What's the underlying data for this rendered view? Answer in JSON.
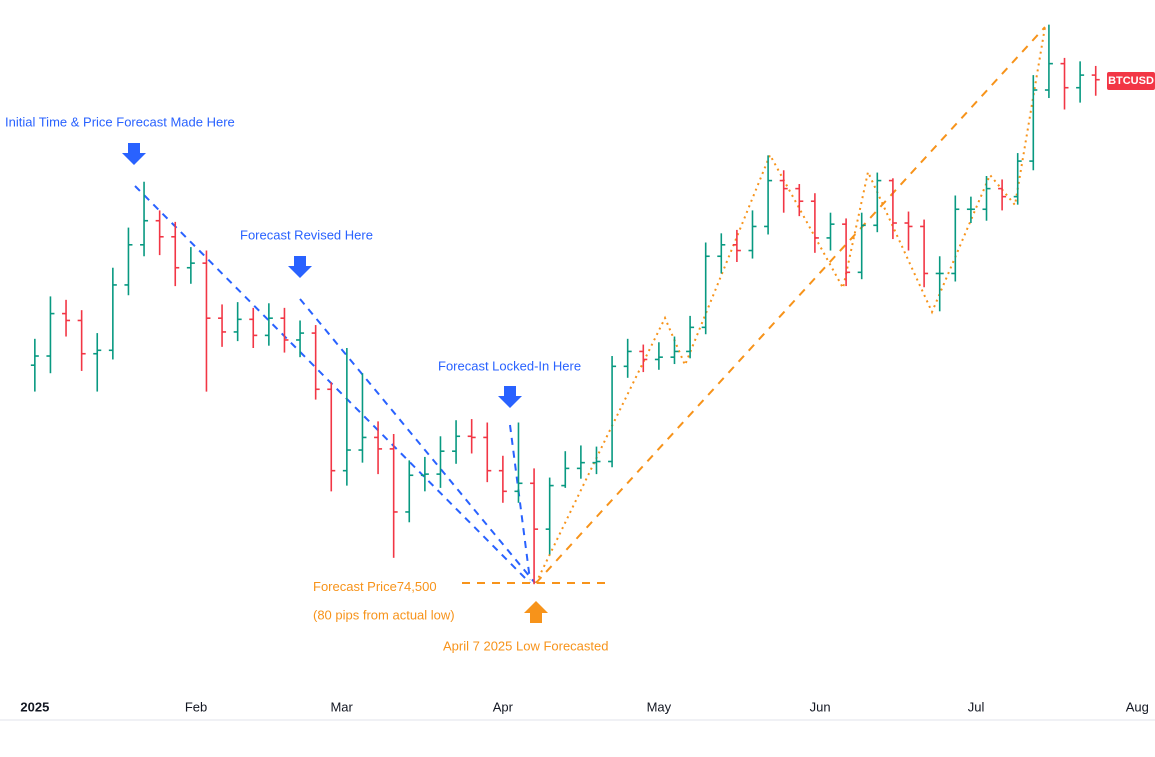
{
  "chart_data": {
    "type": "ohlc",
    "series": [
      {
        "name": "BTCUSD",
        "up_color": "#089981",
        "down_color": "#f23645",
        "x": [
          0,
          3,
          6,
          9,
          12,
          15,
          18,
          21,
          24,
          27,
          30,
          33,
          36,
          39,
          42,
          45,
          48,
          51,
          54,
          57,
          60,
          63,
          66,
          69,
          72,
          75,
          78,
          81,
          84,
          87,
          90,
          93,
          96,
          99,
          102,
          105,
          108,
          111,
          114,
          117,
          120,
          123,
          126,
          129,
          132,
          135,
          138,
          141,
          144,
          147,
          150,
          153,
          156,
          159,
          162,
          165,
          168,
          171,
          174,
          177,
          180,
          183,
          186,
          189,
          192,
          195,
          198,
          201,
          204
        ],
        "open": [
          93500,
          94300,
          98000,
          97400,
          94500,
          94800,
          100500,
          104000,
          106100,
          104700,
          102000,
          102400,
          97600,
          96400,
          97500,
          96100,
          97600,
          95700,
          96300,
          91400,
          84300,
          86100,
          87200,
          86200,
          80700,
          83900,
          84000,
          86000,
          87300,
          87200,
          84300,
          82500,
          83200,
          79200,
          83000,
          84500,
          85000,
          85100,
          93400,
          94700,
          94000,
          94200,
          94700,
          96800,
          103000,
          104000,
          103500,
          105600,
          109600,
          108900,
          107800,
          104600,
          105800,
          101600,
          105700,
          109600,
          105900,
          105600,
          101500,
          101500,
          107100,
          107100,
          108900,
          108200,
          111300,
          117500,
          119800,
          117700,
          118800
        ],
        "high": [
          95800,
          99500,
          99200,
          98300,
          96300,
          102000,
          105500,
          109500,
          107000,
          106000,
          103800,
          103500,
          98800,
          99000,
          98500,
          98900,
          98500,
          97400,
          97000,
          92000,
          95000,
          92800,
          88600,
          87500,
          85200,
          85500,
          87300,
          88700,
          88800,
          88500,
          85600,
          88500,
          84500,
          83700,
          86000,
          86500,
          86400,
          94300,
          95800,
          95300,
          95500,
          96000,
          97800,
          104200,
          105000,
          105300,
          107000,
          111800,
          110500,
          109300,
          108500,
          106800,
          106300,
          106800,
          110300,
          109800,
          106900,
          106200,
          103000,
          108300,
          108200,
          110000,
          109700,
          112000,
          118800,
          123200,
          120300,
          120000,
          119600
        ],
        "low": [
          91200,
          92800,
          96000,
          93000,
          91200,
          94000,
          99600,
          103000,
          103100,
          100400,
          100600,
          91200,
          95100,
          95600,
          95000,
          95200,
          94600,
          94200,
          90500,
          82500,
          83000,
          85000,
          84000,
          76700,
          79800,
          82500,
          82800,
          84900,
          85800,
          83300,
          81500,
          81500,
          74400,
          77000,
          82800,
          83600,
          84000,
          84600,
          92400,
          92900,
          93100,
          93600,
          94100,
          96200,
          101500,
          102500,
          102800,
          104900,
          106800,
          106500,
          103300,
          103500,
          100400,
          101000,
          105100,
          104500,
          103500,
          100300,
          98200,
          100800,
          105900,
          106100,
          107000,
          107500,
          110500,
          116800,
          115800,
          116400,
          117000
        ],
        "close": [
          94300,
          98000,
          97400,
          94500,
          94800,
          100500,
          104000,
          106100,
          104700,
          102000,
          102400,
          97600,
          96400,
          97500,
          96100,
          97600,
          95700,
          96300,
          91400,
          84300,
          86100,
          87200,
          86200,
          80700,
          83900,
          84000,
          86000,
          87300,
          87200,
          84300,
          82500,
          83200,
          79200,
          83000,
          84500,
          85000,
          85100,
          93400,
          94700,
          94000,
          94200,
          94700,
          96800,
          103000,
          104000,
          103500,
          105600,
          109600,
          108900,
          107800,
          104600,
          105800,
          101600,
          105700,
          109600,
          105900,
          105600,
          101500,
          101500,
          107100,
          107100,
          108900,
          108200,
          111300,
          117500,
          119800,
          117700,
          118800,
          118400
        ]
      }
    ],
    "xlim": [
      -6.7,
      215.4
    ],
    "ylim": [
      64300,
      125350
    ],
    "xticks": [
      {
        "value": 0,
        "label": "2025"
      },
      {
        "value": 31,
        "label": "Feb"
      },
      {
        "value": 59,
        "label": "Mar"
      },
      {
        "value": 90,
        "label": "Apr"
      },
      {
        "value": 120,
        "label": "May"
      },
      {
        "value": 151,
        "label": "Jun"
      },
      {
        "value": 181,
        "label": "Jul"
      },
      {
        "value": 212,
        "label": "Aug"
      }
    ],
    "annotations": {
      "initial": "Initial Time & Price Forecast Made Here",
      "revised": "Forecast Revised Here",
      "locked": "Forecast Locked-In Here",
      "forecast_label": "Forecast Price",
      "forecast_price": 74500,
      "forecast_price_label": "74,500",
      "pips_note": "(80 pips from actual low)",
      "low_note": "April 7 2025 Low Forecasted"
    }
  }
}
